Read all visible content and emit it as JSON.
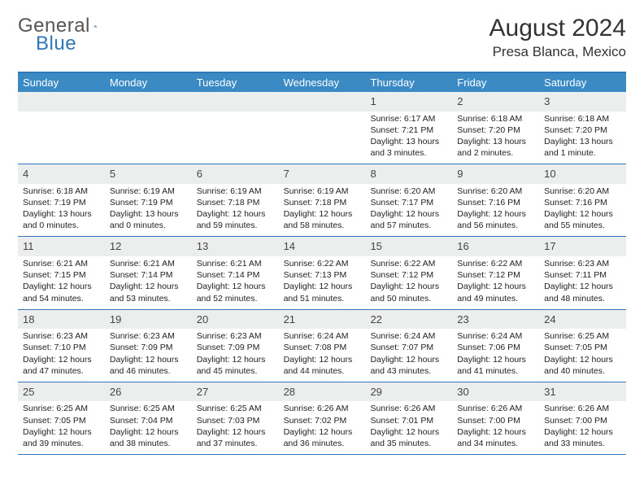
{
  "brand": {
    "part1": "General",
    "part2": "Blue"
  },
  "title": "August 2024",
  "location": "Presa Blanca, Mexico",
  "colors": {
    "header_bg": "#3b8ac4",
    "border": "#2f77b8",
    "daynum_bg": "#eceded",
    "text": "#222222",
    "title": "#333333"
  },
  "weekdays": [
    "Sunday",
    "Monday",
    "Tuesday",
    "Wednesday",
    "Thursday",
    "Friday",
    "Saturday"
  ],
  "weeks": [
    [
      {
        "n": "",
        "sr": "",
        "ss": "",
        "dl1": "",
        "dl2": ""
      },
      {
        "n": "",
        "sr": "",
        "ss": "",
        "dl1": "",
        "dl2": ""
      },
      {
        "n": "",
        "sr": "",
        "ss": "",
        "dl1": "",
        "dl2": ""
      },
      {
        "n": "",
        "sr": "",
        "ss": "",
        "dl1": "",
        "dl2": ""
      },
      {
        "n": "1",
        "sr": "Sunrise: 6:17 AM",
        "ss": "Sunset: 7:21 PM",
        "dl1": "Daylight: 13 hours",
        "dl2": "and 3 minutes."
      },
      {
        "n": "2",
        "sr": "Sunrise: 6:18 AM",
        "ss": "Sunset: 7:20 PM",
        "dl1": "Daylight: 13 hours",
        "dl2": "and 2 minutes."
      },
      {
        "n": "3",
        "sr": "Sunrise: 6:18 AM",
        "ss": "Sunset: 7:20 PM",
        "dl1": "Daylight: 13 hours",
        "dl2": "and 1 minute."
      }
    ],
    [
      {
        "n": "4",
        "sr": "Sunrise: 6:18 AM",
        "ss": "Sunset: 7:19 PM",
        "dl1": "Daylight: 13 hours",
        "dl2": "and 0 minutes."
      },
      {
        "n": "5",
        "sr": "Sunrise: 6:19 AM",
        "ss": "Sunset: 7:19 PM",
        "dl1": "Daylight: 13 hours",
        "dl2": "and 0 minutes."
      },
      {
        "n": "6",
        "sr": "Sunrise: 6:19 AM",
        "ss": "Sunset: 7:18 PM",
        "dl1": "Daylight: 12 hours",
        "dl2": "and 59 minutes."
      },
      {
        "n": "7",
        "sr": "Sunrise: 6:19 AM",
        "ss": "Sunset: 7:18 PM",
        "dl1": "Daylight: 12 hours",
        "dl2": "and 58 minutes."
      },
      {
        "n": "8",
        "sr": "Sunrise: 6:20 AM",
        "ss": "Sunset: 7:17 PM",
        "dl1": "Daylight: 12 hours",
        "dl2": "and 57 minutes."
      },
      {
        "n": "9",
        "sr": "Sunrise: 6:20 AM",
        "ss": "Sunset: 7:16 PM",
        "dl1": "Daylight: 12 hours",
        "dl2": "and 56 minutes."
      },
      {
        "n": "10",
        "sr": "Sunrise: 6:20 AM",
        "ss": "Sunset: 7:16 PM",
        "dl1": "Daylight: 12 hours",
        "dl2": "and 55 minutes."
      }
    ],
    [
      {
        "n": "11",
        "sr": "Sunrise: 6:21 AM",
        "ss": "Sunset: 7:15 PM",
        "dl1": "Daylight: 12 hours",
        "dl2": "and 54 minutes."
      },
      {
        "n": "12",
        "sr": "Sunrise: 6:21 AM",
        "ss": "Sunset: 7:14 PM",
        "dl1": "Daylight: 12 hours",
        "dl2": "and 53 minutes."
      },
      {
        "n": "13",
        "sr": "Sunrise: 6:21 AM",
        "ss": "Sunset: 7:14 PM",
        "dl1": "Daylight: 12 hours",
        "dl2": "and 52 minutes."
      },
      {
        "n": "14",
        "sr": "Sunrise: 6:22 AM",
        "ss": "Sunset: 7:13 PM",
        "dl1": "Daylight: 12 hours",
        "dl2": "and 51 minutes."
      },
      {
        "n": "15",
        "sr": "Sunrise: 6:22 AM",
        "ss": "Sunset: 7:12 PM",
        "dl1": "Daylight: 12 hours",
        "dl2": "and 50 minutes."
      },
      {
        "n": "16",
        "sr": "Sunrise: 6:22 AM",
        "ss": "Sunset: 7:12 PM",
        "dl1": "Daylight: 12 hours",
        "dl2": "and 49 minutes."
      },
      {
        "n": "17",
        "sr": "Sunrise: 6:23 AM",
        "ss": "Sunset: 7:11 PM",
        "dl1": "Daylight: 12 hours",
        "dl2": "and 48 minutes."
      }
    ],
    [
      {
        "n": "18",
        "sr": "Sunrise: 6:23 AM",
        "ss": "Sunset: 7:10 PM",
        "dl1": "Daylight: 12 hours",
        "dl2": "and 47 minutes."
      },
      {
        "n": "19",
        "sr": "Sunrise: 6:23 AM",
        "ss": "Sunset: 7:09 PM",
        "dl1": "Daylight: 12 hours",
        "dl2": "and 46 minutes."
      },
      {
        "n": "20",
        "sr": "Sunrise: 6:23 AM",
        "ss": "Sunset: 7:09 PM",
        "dl1": "Daylight: 12 hours",
        "dl2": "and 45 minutes."
      },
      {
        "n": "21",
        "sr": "Sunrise: 6:24 AM",
        "ss": "Sunset: 7:08 PM",
        "dl1": "Daylight: 12 hours",
        "dl2": "and 44 minutes."
      },
      {
        "n": "22",
        "sr": "Sunrise: 6:24 AM",
        "ss": "Sunset: 7:07 PM",
        "dl1": "Daylight: 12 hours",
        "dl2": "and 43 minutes."
      },
      {
        "n": "23",
        "sr": "Sunrise: 6:24 AM",
        "ss": "Sunset: 7:06 PM",
        "dl1": "Daylight: 12 hours",
        "dl2": "and 41 minutes."
      },
      {
        "n": "24",
        "sr": "Sunrise: 6:25 AM",
        "ss": "Sunset: 7:05 PM",
        "dl1": "Daylight: 12 hours",
        "dl2": "and 40 minutes."
      }
    ],
    [
      {
        "n": "25",
        "sr": "Sunrise: 6:25 AM",
        "ss": "Sunset: 7:05 PM",
        "dl1": "Daylight: 12 hours",
        "dl2": "and 39 minutes."
      },
      {
        "n": "26",
        "sr": "Sunrise: 6:25 AM",
        "ss": "Sunset: 7:04 PM",
        "dl1": "Daylight: 12 hours",
        "dl2": "and 38 minutes."
      },
      {
        "n": "27",
        "sr": "Sunrise: 6:25 AM",
        "ss": "Sunset: 7:03 PM",
        "dl1": "Daylight: 12 hours",
        "dl2": "and 37 minutes."
      },
      {
        "n": "28",
        "sr": "Sunrise: 6:26 AM",
        "ss": "Sunset: 7:02 PM",
        "dl1": "Daylight: 12 hours",
        "dl2": "and 36 minutes."
      },
      {
        "n": "29",
        "sr": "Sunrise: 6:26 AM",
        "ss": "Sunset: 7:01 PM",
        "dl1": "Daylight: 12 hours",
        "dl2": "and 35 minutes."
      },
      {
        "n": "30",
        "sr": "Sunrise: 6:26 AM",
        "ss": "Sunset: 7:00 PM",
        "dl1": "Daylight: 12 hours",
        "dl2": "and 34 minutes."
      },
      {
        "n": "31",
        "sr": "Sunrise: 6:26 AM",
        "ss": "Sunset: 7:00 PM",
        "dl1": "Daylight: 12 hours",
        "dl2": "and 33 minutes."
      }
    ]
  ]
}
